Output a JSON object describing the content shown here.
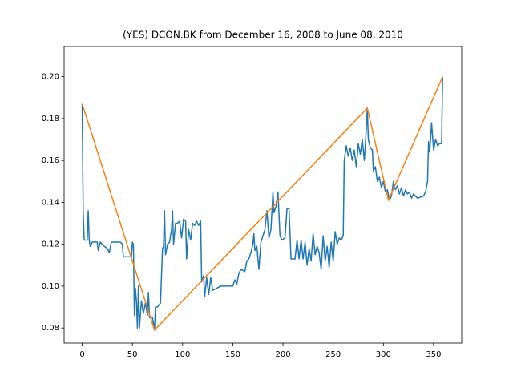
{
  "chart_data": {
    "type": "line",
    "title": "(YES) DCON.BK from December 16, 2008 to June 08, 2010",
    "xlim": [
      -18,
      378
    ],
    "xticks": [
      0,
      50,
      100,
      150,
      200,
      250,
      300,
      350
    ],
    "ylim": [
      0.0728,
      0.2144
    ],
    "yticks": [
      0.08,
      {
        "value": 0.1,
        "label": "0.10"
      },
      0.12,
      0.14,
      0.16,
      0.18,
      {
        "value": 0.2,
        "label": "0.20"
      }
    ],
    "grid": false,
    "series": [
      {
        "color": "#1f77b4",
        "x": [
          0,
          1,
          2,
          5,
          6,
          7,
          8,
          10,
          15,
          16,
          18,
          20,
          22,
          25,
          27,
          29,
          38,
          40,
          41,
          49,
          50,
          51,
          52,
          53,
          54,
          55,
          56,
          57,
          59,
          61,
          63,
          65,
          66,
          67,
          70,
          72,
          73,
          75,
          78,
          80,
          81,
          82,
          83,
          85,
          87,
          89,
          90,
          91,
          93,
          95,
          97,
          99,
          101,
          103,
          104,
          106,
          108,
          110,
          112,
          114,
          116,
          118,
          119,
          121,
          122,
          124,
          126,
          128,
          130,
          134,
          138,
          150,
          152,
          154,
          156,
          158,
          162,
          164,
          166,
          168,
          170,
          171,
          172,
          174,
          176,
          178,
          180,
          182,
          184,
          186,
          188,
          190,
          191,
          193,
          195,
          197,
          199,
          202,
          204,
          206,
          207,
          208,
          212,
          214,
          216,
          218,
          220,
          222,
          224,
          226,
          228,
          230,
          232,
          234,
          236,
          238,
          240,
          242,
          244,
          246,
          248,
          250,
          252,
          254,
          256,
          258,
          260,
          261,
          263,
          265,
          267,
          269,
          271,
          273,
          275,
          277,
          279,
          281,
          283,
          284,
          285,
          287,
          289,
          290,
          292,
          294,
          296,
          298,
          300,
          302,
          304,
          306,
          308,
          310,
          312,
          314,
          316,
          318,
          320,
          322,
          324,
          326,
          328,
          330,
          334,
          340,
          342,
          344,
          345,
          346,
          347,
          348,
          350,
          352,
          354,
          356,
          358,
          359
        ],
        "values": [
          0.187,
          0.135,
          0.122,
          0.122,
          0.136,
          0.122,
          0.119,
          0.121,
          0.121,
          0.117,
          0.121,
          0.12,
          0.119,
          0.118,
          0.116,
          0.121,
          0.121,
          0.12,
          0.114,
          0.114,
          0.121,
          0.12,
          0.086,
          0.099,
          0.093,
          0.08,
          0.1,
          0.08,
          0.093,
          0.087,
          0.092,
          0.086,
          0.097,
          0.085,
          0.085,
          0.079,
          0.09,
          0.09,
          0.092,
          0.118,
          0.119,
          0.136,
          0.115,
          0.12,
          0.121,
          0.127,
          0.136,
          0.12,
          0.13,
          0.13,
          0.131,
          0.123,
          0.132,
          0.131,
          0.113,
          0.127,
          0.122,
          0.13,
          0.129,
          0.131,
          0.129,
          0.131,
          0.102,
          0.105,
          0.095,
          0.104,
          0.096,
          0.104,
          0.098,
          0.099,
          0.1,
          0.1,
          0.103,
          0.101,
          0.106,
          0.108,
          0.107,
          0.112,
          0.113,
          0.116,
          0.12,
          0.125,
          0.117,
          0.119,
          0.108,
          0.121,
          0.124,
          0.127,
          0.136,
          0.123,
          0.127,
          0.145,
          0.135,
          0.138,
          0.145,
          0.124,
          0.122,
          0.123,
          0.137,
          0.137,
          0.125,
          0.113,
          0.113,
          0.122,
          0.113,
          0.122,
          0.113,
          0.121,
          0.11,
          0.118,
          0.112,
          0.125,
          0.115,
          0.119,
          0.116,
          0.108,
          0.124,
          0.112,
          0.119,
          0.109,
          0.121,
          0.112,
          0.126,
          0.12,
          0.123,
          0.122,
          0.124,
          0.16,
          0.167,
          0.162,
          0.166,
          0.16,
          0.165,
          0.157,
          0.168,
          0.163,
          0.17,
          0.16,
          0.175,
          0.185,
          0.17,
          0.166,
          0.165,
          0.155,
          0.157,
          0.15,
          0.152,
          0.147,
          0.15,
          0.145,
          0.146,
          0.141,
          0.143,
          0.15,
          0.146,
          0.148,
          0.144,
          0.147,
          0.143,
          0.146,
          0.144,
          0.145,
          0.142,
          0.144,
          0.142,
          0.143,
          0.145,
          0.15,
          0.169,
          0.164,
          0.17,
          0.178,
          0.165,
          0.17,
          0.167,
          0.168,
          0.168,
          0.2
        ]
      },
      {
        "color": "#ff7f0e",
        "x": [
          0,
          72,
          284,
          305,
          359
        ],
        "values": [
          0.187,
          0.079,
          0.185,
          0.141,
          0.2
        ]
      }
    ]
  }
}
